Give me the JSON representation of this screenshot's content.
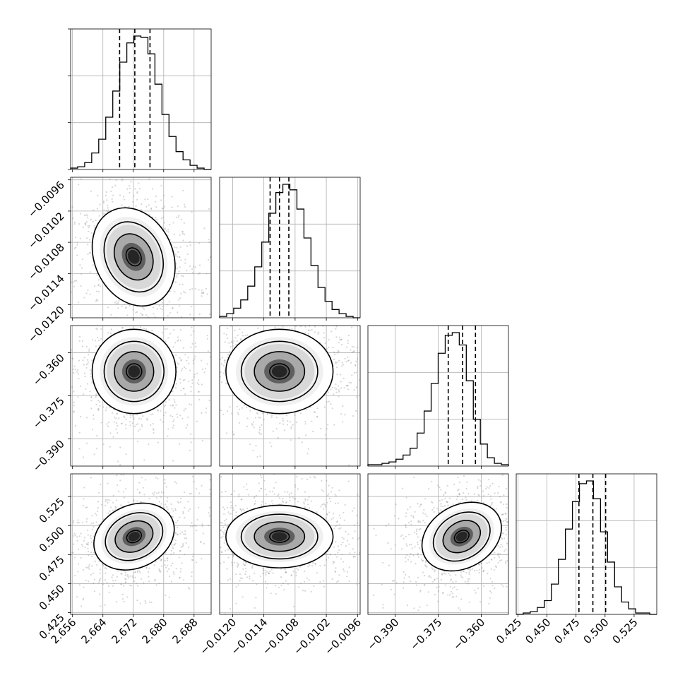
{
  "chart_data": {
    "type": "corner",
    "parameters": [
      {
        "index": 0,
        "range": [
          2.6555,
          2.6925
        ],
        "ticks": [
          2.656,
          2.664,
          2.672,
          2.68,
          2.688
        ],
        "tick_labels": [
          "2.656",
          "2.664",
          "2.672",
          "2.680",
          "2.688"
        ],
        "quantiles": [
          2.6684,
          2.6724,
          2.6764
        ],
        "hist": [
          1,
          2,
          5,
          12,
          22,
          38,
          57,
          78,
          92,
          97,
          96,
          84,
          62,
          40,
          24,
          13,
          7,
          3,
          1,
          0
        ]
      },
      {
        "index": 1,
        "range": [
          -0.01225,
          -0.00955
        ],
        "ticks": [
          -0.012,
          -0.0114,
          -0.0108,
          -0.0102,
          -0.0096
        ],
        "tick_labels": [
          "−0.0120",
          "−0.0114",
          "−0.0108",
          "−0.0102",
          "−0.0096"
        ],
        "quantiles": [
          -0.01128,
          -0.0111,
          -0.01092
        ],
        "hist": [
          1,
          3,
          7,
          13,
          23,
          37,
          55,
          76,
          91,
          97,
          93,
          79,
          58,
          38,
          22,
          12,
          6,
          3,
          1,
          0
        ]
      },
      {
        "index": 2,
        "range": [
          -0.3995,
          -0.3505
        ],
        "ticks": [
          -0.39,
          -0.375,
          -0.36
        ],
        "tick_labels": [
          "−0.390",
          "−0.375",
          "−0.360"
        ],
        "quantiles": [
          -0.3715,
          -0.3665,
          -0.362
        ],
        "hist": [
          1,
          1,
          2,
          3,
          5,
          8,
          13,
          24,
          40,
          60,
          82,
          95,
          97,
          88,
          62,
          34,
          16,
          6,
          2,
          1
        ]
      },
      {
        "index": 3,
        "range": [
          0.4235,
          0.5445
        ],
        "ticks": [
          0.425,
          0.45,
          0.475,
          0.5,
          0.525
        ],
        "tick_labels": [
          "0.425",
          "0.450",
          "0.475",
          "0.500",
          "0.525"
        ],
        "quantiles": [
          0.4775,
          0.4895,
          0.5005
        ],
        "hist": [
          0,
          1,
          2,
          5,
          10,
          22,
          40,
          62,
          82,
          95,
          97,
          84,
          60,
          38,
          20,
          9,
          4,
          1,
          1,
          0
        ]
      }
    ],
    "pairs": [
      {
        "x": 0,
        "y": 1,
        "center": [
          2.6721,
          -0.01108
        ],
        "rx": 0.0042,
        "ry": 0.0004,
        "rot": -25
      },
      {
        "x": 0,
        "y": 2,
        "center": [
          2.6722,
          -0.3665
        ],
        "rx": 0.0045,
        "ry": 0.006,
        "rot": 0
      },
      {
        "x": 1,
        "y": 2,
        "center": [
          -0.0111,
          -0.3665
        ],
        "rx": 0.00042,
        "ry": 0.006,
        "rot": 0
      },
      {
        "x": 0,
        "y": 3,
        "center": [
          2.6722,
          0.4905
        ],
        "rx": 0.0045,
        "ry": 0.011,
        "rot": -25
      },
      {
        "x": 1,
        "y": 3,
        "center": [
          -0.0111,
          0.4905
        ],
        "rx": 0.00042,
        "ry": 0.011,
        "rot": 0
      },
      {
        "x": 2,
        "y": 3,
        "center": [
          -0.3668,
          0.4905
        ],
        "rx": 0.006,
        "ry": 0.011,
        "rot": -30
      }
    ],
    "grid": true,
    "xlabel": "",
    "ylabel": "",
    "title": ""
  }
}
